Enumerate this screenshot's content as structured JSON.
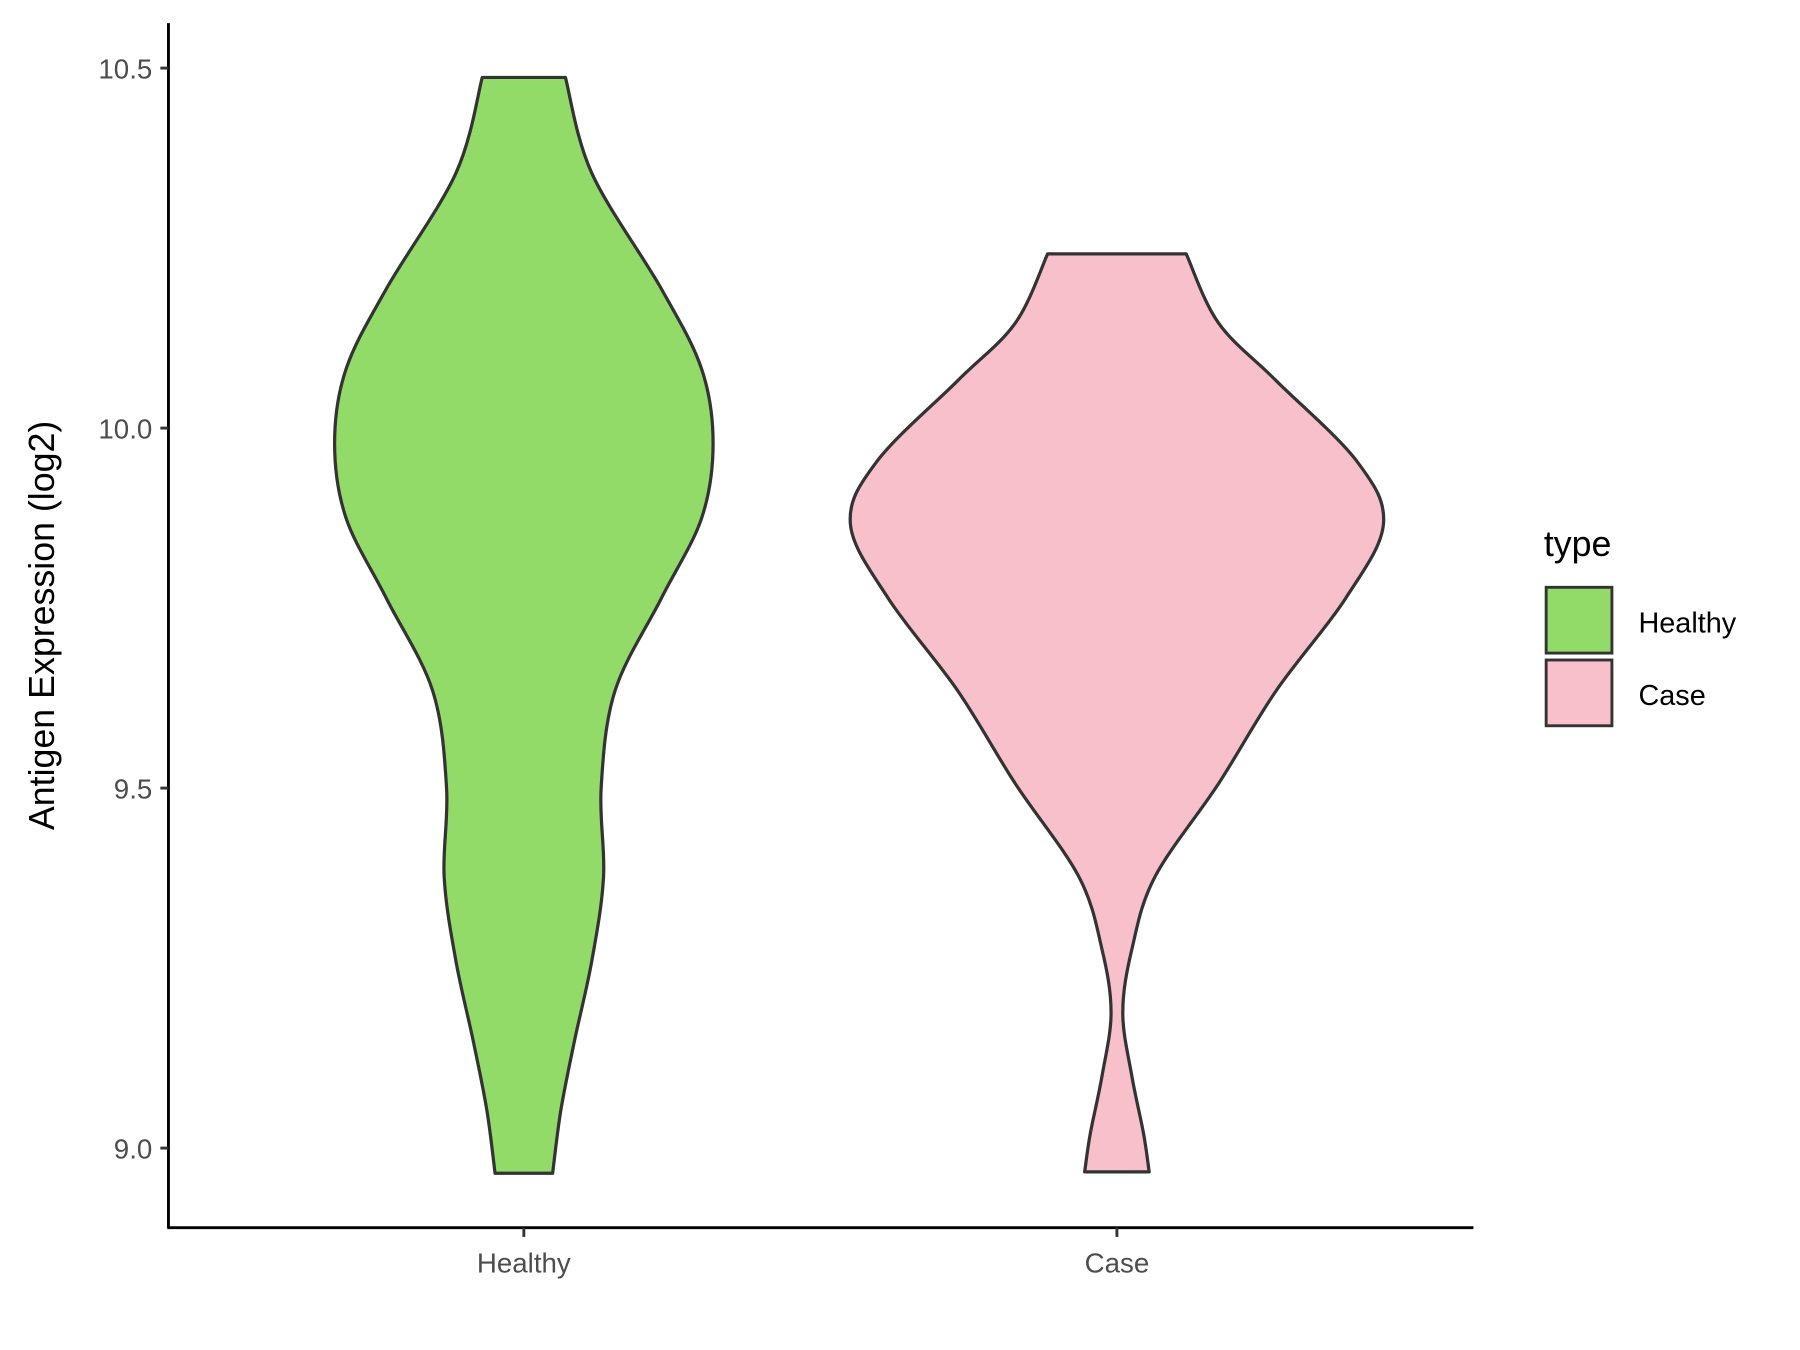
{
  "chart_data": {
    "type": "violin",
    "title": "",
    "xlabel": "",
    "ylabel": "Antigen Expression (log2)",
    "ylim": [
      8.89,
      10.56
    ],
    "yticks": [
      "9.0",
      "9.5",
      "10.0",
      "10.5"
    ],
    "categories": [
      "Healthy",
      "Case"
    ],
    "grid": false,
    "legend": {
      "title": "type",
      "position": "right",
      "entries": [
        "Healthy",
        "Case"
      ]
    },
    "series": [
      {
        "name": "Healthy",
        "color": "#93DB69",
        "profile": [
          [
            10.487,
            0.156
          ],
          [
            10.354,
            0.255
          ],
          [
            10.194,
            0.515
          ],
          [
            10.082,
            0.667
          ],
          [
            9.979,
            0.71
          ],
          [
            9.875,
            0.667
          ],
          [
            9.763,
            0.515
          ],
          [
            9.635,
            0.342
          ],
          [
            9.5,
            0.29
          ],
          [
            9.377,
            0.299
          ],
          [
            9.26,
            0.255
          ],
          [
            9.149,
            0.19
          ],
          [
            9.053,
            0.139
          ],
          [
            8.965,
            0.108
          ]
        ]
      },
      {
        "name": "Case",
        "color": "#F7C0CB",
        "profile": [
          [
            10.242,
            0.26
          ],
          [
            10.146,
            0.381
          ],
          [
            10.066,
            0.597
          ],
          [
            9.954,
            0.9
          ],
          [
            9.867,
            1.0
          ],
          [
            9.763,
            0.857
          ],
          [
            9.635,
            0.597
          ],
          [
            9.506,
            0.381
          ],
          [
            9.377,
            0.143
          ],
          [
            9.276,
            0.056
          ],
          [
            9.188,
            0.022
          ],
          [
            9.1,
            0.056
          ],
          [
            9.02,
            0.1
          ],
          [
            8.967,
            0.121
          ]
        ]
      }
    ]
  }
}
